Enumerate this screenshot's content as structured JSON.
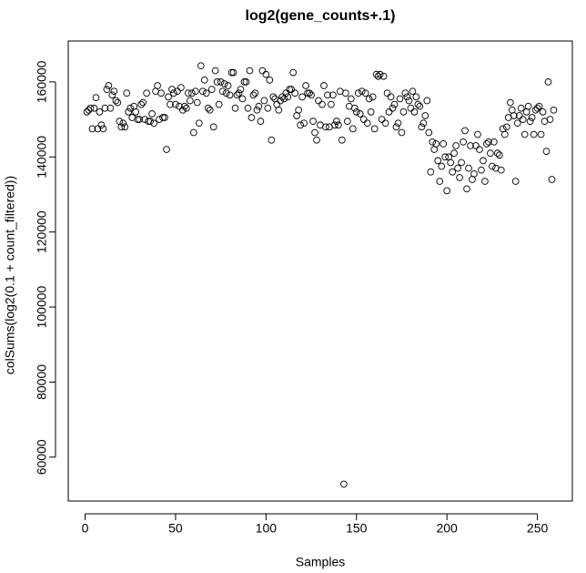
{
  "chart_data": {
    "type": "scatter",
    "title": "log2(gene_counts+.1)",
    "x_label": "Samples",
    "y_label": "colSums(log2(0.1 + count_filtered))",
    "color": "#000000",
    "marker": "open-circle",
    "x": [
      1,
      2,
      3,
      4,
      5,
      6,
      7,
      8,
      9,
      10,
      11,
      12,
      13,
      14,
      15,
      16,
      17,
      18,
      19,
      20,
      21,
      22,
      23,
      24,
      25,
      26,
      27,
      28,
      29,
      30,
      31,
      32,
      33,
      34,
      35,
      36,
      37,
      38,
      39,
      40,
      41,
      42,
      43,
      44,
      45,
      46,
      47,
      48,
      49,
      50,
      51,
      52,
      53,
      54,
      55,
      56,
      57,
      58,
      59,
      60,
      61,
      62,
      63,
      64,
      65,
      66,
      67,
      68,
      69,
      70,
      71,
      72,
      73,
      74,
      75,
      76,
      77,
      78,
      79,
      80,
      81,
      82,
      83,
      84,
      85,
      86,
      87,
      88,
      89,
      90,
      91,
      92,
      93,
      94,
      95,
      96,
      97,
      98,
      99,
      100,
      101,
      102,
      103,
      104,
      105,
      106,
      107,
      108,
      109,
      110,
      111,
      112,
      113,
      114,
      115,
      116,
      117,
      118,
      119,
      120,
      121,
      122,
      123,
      124,
      125,
      126,
      127,
      128,
      129,
      130,
      131,
      132,
      133,
      134,
      135,
      136,
      137,
      138,
      139,
      140,
      141,
      142,
      143,
      144,
      145,
      146,
      147,
      148,
      149,
      150,
      151,
      152,
      153,
      154,
      155,
      156,
      157,
      158,
      159,
      160,
      161,
      162,
      163,
      164,
      165,
      166,
      167,
      168,
      169,
      170,
      171,
      172,
      173,
      174,
      175,
      176,
      177,
      178,
      179,
      180,
      181,
      182,
      183,
      184,
      185,
      186,
      187,
      188,
      189,
      190,
      191,
      192,
      193,
      194,
      195,
      196,
      197,
      198,
      199,
      200,
      201,
      202,
      203,
      204,
      205,
      206,
      207,
      208,
      209,
      210,
      211,
      212,
      213,
      214,
      215,
      216,
      217,
      218,
      219,
      220,
      221,
      222,
      223,
      224,
      225,
      226,
      227,
      228,
      229,
      230,
      231,
      232,
      233,
      234,
      235,
      236,
      237,
      238,
      239,
      240,
      241,
      242,
      243,
      244,
      245,
      246,
      247,
      248,
      249,
      250,
      251,
      252,
      253,
      254,
      255,
      256,
      257,
      258,
      259
    ],
    "values": [
      152000,
      152500,
      153000,
      147500,
      153000,
      155800,
      147500,
      152000,
      148500,
      147500,
      153000,
      158000,
      159000,
      153000,
      156500,
      157500,
      155000,
      154500,
      149500,
      148000,
      149000,
      148000,
      157000,
      152000,
      153000,
      150500,
      153500,
      152000,
      150000,
      150000,
      154000,
      154500,
      150000,
      157000,
      149500,
      149500,
      151500,
      149000,
      157500,
      159000,
      150000,
      157000,
      150500,
      150500,
      142000,
      156000,
      154000,
      158000,
      157000,
      154000,
      157500,
      153500,
      158500,
      152500,
      153500,
      153000,
      157000,
      155000,
      157000,
      146500,
      157500,
      154500,
      149000,
      164300,
      157500,
      160500,
      157000,
      153000,
      152500,
      158000,
      148000,
      163000,
      160000,
      154000,
      160000,
      157500,
      159500,
      157000,
      159000,
      156500,
      162500,
      162500,
      153000,
      156500,
      157000,
      158000,
      155500,
      160000,
      160000,
      153000,
      163000,
      150500,
      156500,
      157000,
      152500,
      153500,
      149500,
      163000,
      155000,
      162000,
      153000,
      160500,
      144500,
      156000,
      155500,
      154000,
      152500,
      155000,
      156000,
      155500,
      157000,
      156000,
      158000,
      158000,
      162500,
      157000,
      151000,
      152500,
      148500,
      156000,
      149000,
      159000,
      157000,
      157000,
      156500,
      149500,
      146500,
      144500,
      155000,
      148500,
      154000,
      159000,
      148000,
      156500,
      148000,
      154000,
      156500,
      148500,
      149500,
      148500,
      157500,
      144500,
      52800,
      157000,
      149500,
      153500,
      155500,
      147500,
      153000,
      152000,
      157000,
      151500,
      157500,
      150000,
      157000,
      149000,
      155500,
      152000,
      156000,
      147500,
      162000,
      161500,
      162000,
      150000,
      161500,
      149000,
      157000,
      152000,
      156000,
      153000,
      154000,
      148000,
      149000,
      155500,
      146500,
      152000,
      157000,
      156000,
      155000,
      153000,
      157500,
      152000,
      156000,
      154000,
      153500,
      148000,
      149000,
      151000,
      155000,
      146500,
      136000,
      144000,
      142000,
      143500,
      139000,
      133500,
      137500,
      143500,
      140000,
      131000,
      140000,
      138500,
      136000,
      141000,
      143000,
      137000,
      134500,
      138500,
      144000,
      147000,
      131500,
      137000,
      143000,
      134000,
      135500,
      143000,
      146000,
      142000,
      136500,
      139000,
      133500,
      143500,
      144000,
      141000,
      137500,
      144000,
      137000,
      141000,
      140500,
      136500,
      147500,
      146000,
      148000,
      150500,
      154500,
      152500,
      151000,
      133500,
      149000,
      151000,
      153000,
      150000,
      146000,
      152000,
      153500,
      149500,
      150500,
      146000,
      152500,
      153000,
      153500,
      146000,
      152000,
      149500,
      141500,
      160000,
      150000,
      134000,
      152500
    ],
    "xlim": [
      -9.32,
      269.32
    ],
    "ylim": [
      48300,
      170900
    ],
    "xticks": [
      0,
      50,
      100,
      150,
      200,
      250
    ],
    "yticks": [
      60000,
      80000,
      100000,
      120000,
      140000,
      160000
    ],
    "grid": false
  }
}
